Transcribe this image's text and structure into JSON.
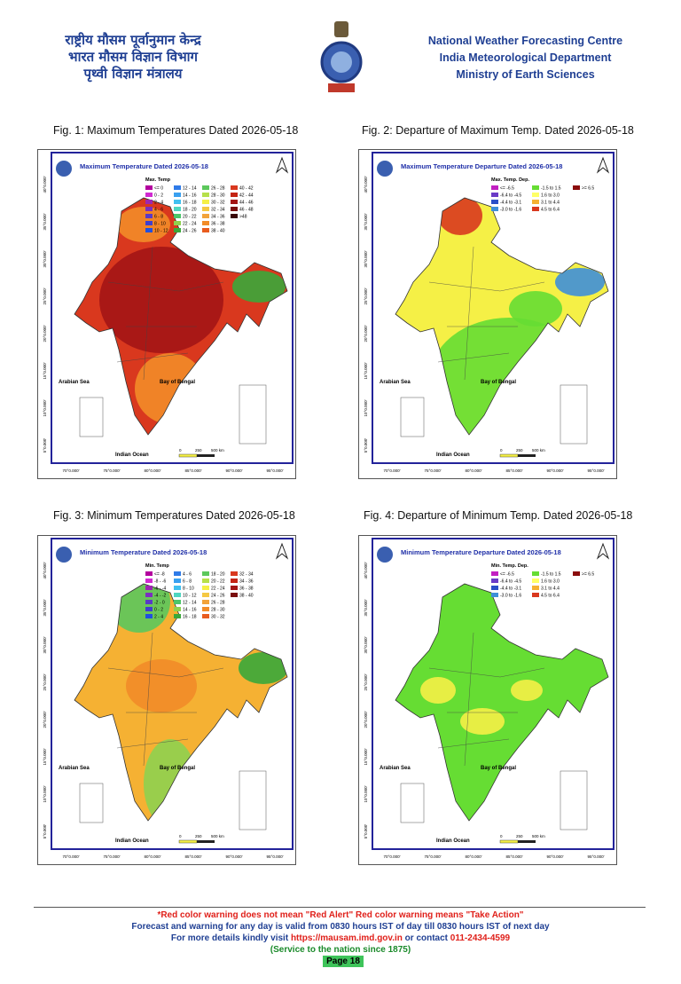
{
  "header": {
    "hindi_lines": [
      "राष्ट्रीय मौसम पूर्वानुमान केन्द्र",
      "भारत मौसम विज्ञान विभाग",
      "पृथ्वी विज्ञान मंत्रालय"
    ],
    "english_lines": [
      "National Weather Forecasting Centre",
      "India Meteorological Department",
      "Ministry of Earth Sciences"
    ]
  },
  "map_common": {
    "arabian_sea": "Arabian Sea",
    "bay_of_bengal": "Bay of Bengal",
    "indian_ocean": "Indian Ocean",
    "scale": [
      "0",
      "250",
      "500 km"
    ],
    "lat_labels": [
      "40°0.000'",
      "35°0.000'",
      "30°0.000'",
      "25°0.000'",
      "20°0.000'",
      "15°0.000'",
      "10°0.000'",
      "5°0.000'"
    ],
    "lon_labels": [
      "70°0.000'",
      "75°0.000'",
      "80°0.000'",
      "85°0.000'",
      "90°0.000'",
      "95°0.000'"
    ]
  },
  "figures": [
    {
      "caption": "Fig. 1: Maximum Temperatures Dated 2026-05-18",
      "map_title": "Maximum Temperature Dated 2026-05-18",
      "legend_title": "Max. Temp",
      "legend": [
        "<= 0",
        "0 - 2",
        "2 - 4",
        "4 - 6",
        "6 - 8",
        "8 - 10",
        "10 - 12",
        "12 - 14",
        "14 - 16",
        "16 - 18",
        "18 - 20",
        "20 - 22",
        "22 - 24",
        "24 - 26",
        "26 - 28",
        "28 - 30",
        "30 - 32",
        "32 - 34",
        "34 - 36",
        "36 - 38",
        "38 - 40",
        "40 - 42",
        "42 - 44",
        "44 - 46",
        "46 - 48",
        ">48"
      ],
      "legend_colors": [
        "#b3009e",
        "#d12ad1",
        "#9c27b0",
        "#7b2fbf",
        "#5a3ac7",
        "#3f3fcf",
        "#2050e0",
        "#2f7be8",
        "#39a0f0",
        "#40c0f0",
        "#4fd6c0",
        "#4cc66a",
        "#8fd14f",
        "#3aa83a",
        "#5cc85c",
        "#b6e04a",
        "#f5f046",
        "#f5c842",
        "#f2a33a",
        "#f28c28",
        "#e85c1e",
        "#d9381e",
        "#c42414",
        "#a31515",
        "#7a0e0e",
        "#3a0505"
      ]
    },
    {
      "caption": "Fig. 2: Departure of Maximum Temp. Dated 2026-05-18",
      "map_title": "Maximum Temperature Departure Dated 2026-05-18",
      "legend_title": "Max. Temp. Dep.",
      "legend": [
        "<= -6.5",
        "-6.4 to -4.5",
        "-4.4 to -3.1",
        "-3.0 to -1.6",
        "-1.5 to 1.5",
        "1.6 to 3.0",
        "3.1 to 4.4",
        "4.5 to 6.4",
        ">= 6.5"
      ],
      "legend_colors": [
        "#c21fc2",
        "#6a3bc7",
        "#2a4fc8",
        "#3f8fd8",
        "#66dd33",
        "#ffff66",
        "#f5b133",
        "#d9381e",
        "#8b0d0d"
      ]
    },
    {
      "caption": "Fig. 3: Minimum Temperatures Dated 2026-05-18",
      "map_title": "Minimum Temperature Dated 2026-05-18",
      "legend_title": "Min. Temp",
      "legend": [
        "<= -8",
        "-8 - -6",
        "-6 - -4",
        "-4 - -2",
        "-2 - 0",
        "0 - 2",
        "2 - 4",
        "4 - 6",
        "6 - 8",
        "8 - 10",
        "10 - 12",
        "12 - 14",
        "14 - 16",
        "16 - 18",
        "18 - 20",
        "20 - 22",
        "22 - 24",
        "24 - 26",
        "26 - 28",
        "28 - 30",
        "30 - 32",
        "32 - 34",
        "34 - 36",
        "36 - 38",
        "38 - 40"
      ],
      "legend_colors": [
        "#b3009e",
        "#d12ad1",
        "#9c27b0",
        "#7b2fbf",
        "#5a3ac7",
        "#3f3fcf",
        "#2050e0",
        "#2f7be8",
        "#39a0f0",
        "#40c0f0",
        "#4fd6c0",
        "#4cc66a",
        "#8fd14f",
        "#3aa83a",
        "#5cc85c",
        "#b6e04a",
        "#f5f046",
        "#f5c842",
        "#f2a33a",
        "#f28c28",
        "#e85c1e",
        "#d9381e",
        "#c42414",
        "#a31515",
        "#7a0e0e"
      ]
    },
    {
      "caption": "Fig. 4: Departure of Minimum Temp. Dated 2026-05-18",
      "map_title": "Minimum Temperature Departure Dated 2026-05-18",
      "legend_title": "Min. Temp. Dep.",
      "legend": [
        "<= -6.5",
        "-6.4 to -4.5",
        "-4.4 to -3.1",
        "-3.0 to -1.6",
        "-1.5 to 1.5",
        "1.6 to 3.0",
        "3.1 to 4.4",
        "4.5 to 6.4",
        ">= 6.5"
      ],
      "legend_colors": [
        "#c21fc2",
        "#6a3bc7",
        "#2a4fc8",
        "#3f8fd8",
        "#66dd33",
        "#ffff66",
        "#f5b133",
        "#d9381e",
        "#8b0d0d"
      ]
    }
  ],
  "footer": {
    "line1": "*Red color warning does not mean \"Red Alert\" Red color warning means \"Take Action\"",
    "line2": "Forecast and warning for any day is valid from 0830 hours IST of day till 0830 hours IST of next day",
    "line3_prefix": "For more details kindly visit ",
    "url": "https://mausam.imd.gov.in",
    "line3_mid": " or contact ",
    "phone": "011-2434-4599",
    "line4": "(Service to the nation since 1875)",
    "page": "Page 18"
  }
}
